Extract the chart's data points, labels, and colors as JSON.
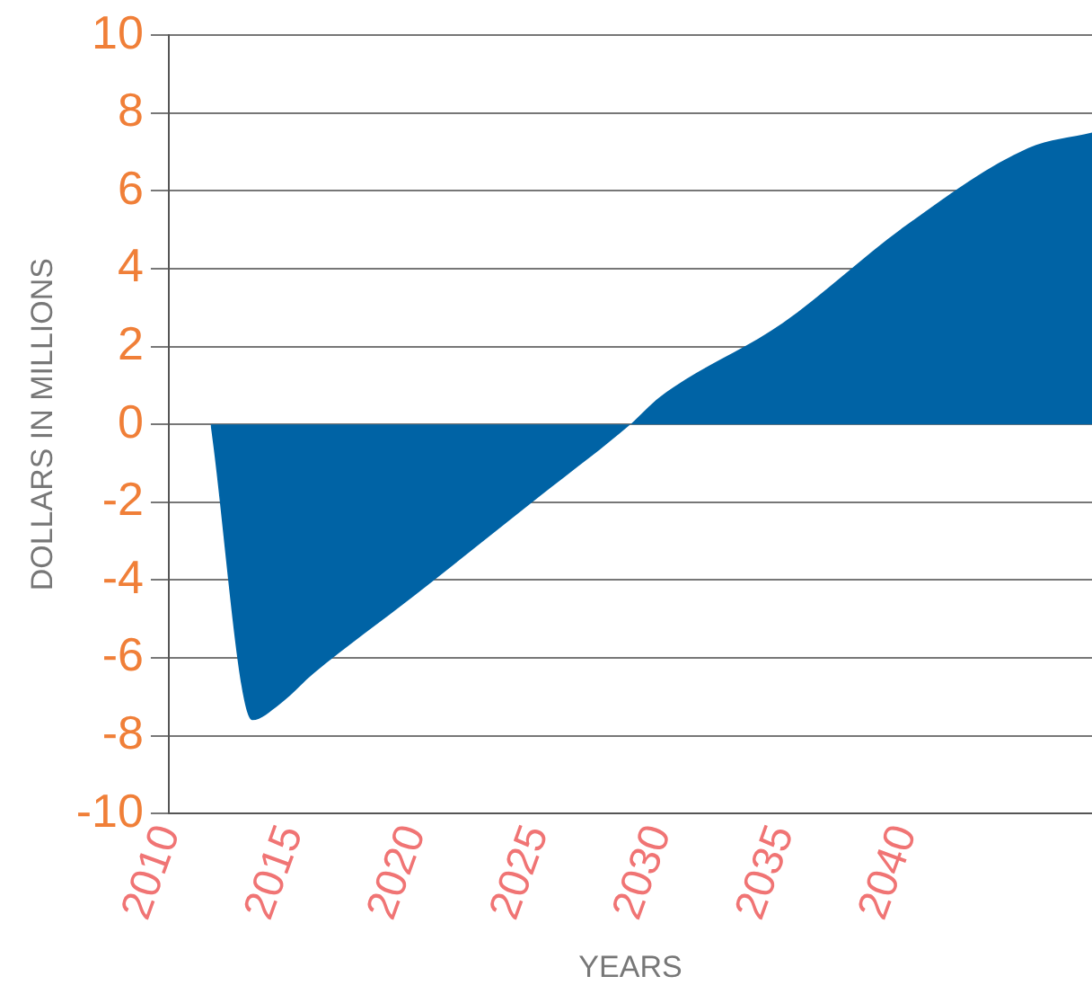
{
  "chart_data": {
    "type": "area",
    "xlabel": "YEARS",
    "ylabel": "DOLLARS IN MILLIONS",
    "x": [
      2011.7,
      2013.4,
      2014.5,
      2015.9,
      2020,
      2025,
      2028.8,
      2030,
      2035,
      2040,
      2045,
      2047.6
    ],
    "series": [
      {
        "color": "#0063a5",
        "values": [
          0,
          -7.6,
          -7.2,
          -6.4,
          -4.4,
          -1.9,
          0,
          0.7,
          2.6,
          5.1,
          7.1,
          7.5
        ]
      }
    ],
    "xlim": [
      2010,
      2047.6
    ],
    "xticks": [
      2010,
      2015,
      2020,
      2025,
      2030,
      2035,
      2040
    ],
    "ylim": [
      -10,
      10
    ],
    "yticks": [
      -10,
      -8,
      -6,
      -4,
      -2,
      0,
      2,
      4,
      6,
      8,
      10
    ],
    "grid": "y",
    "legend": false
  }
}
